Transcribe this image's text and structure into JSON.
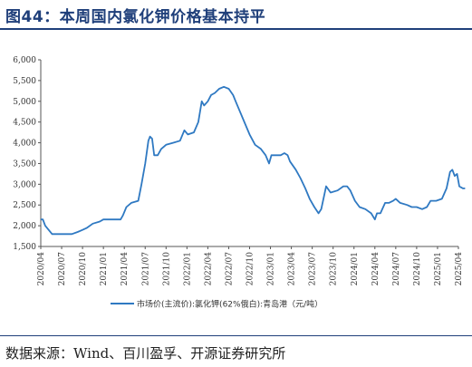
{
  "header": {
    "title": "图44：本周国内氯化钾价格基本持平"
  },
  "footer": {
    "source": "数据来源：Wind、百川盈孚、开源证券研究所"
  },
  "colors": {
    "line": "#2f79c2",
    "title": "#1f3f7a"
  },
  "chart_data": {
    "type": "line",
    "title": "",
    "xlabel": "",
    "ylabel": "",
    "ylim": [
      1500,
      6000
    ],
    "yticks": [
      1500,
      2000,
      2500,
      3000,
      3500,
      4000,
      4500,
      5000,
      5500,
      6000
    ],
    "xlim": [
      "2020-04",
      "2025-04"
    ],
    "xticks": [
      "2020/04",
      "2020/07",
      "2020/10",
      "2021/01",
      "2021/04",
      "2021/07",
      "2021/10",
      "2022/01",
      "2022/04",
      "2022/07",
      "2022/10",
      "2023/01",
      "2023/04",
      "2023/07",
      "2023/10",
      "2024/01",
      "2024/04",
      "2024/07",
      "2024/10",
      "2025/01",
      "2025/04"
    ],
    "legend_position": "bottom",
    "grid": false,
    "series": [
      {
        "name": "市场价(主流价):氯化钾(62%俄白):青岛港（元/吨）",
        "points": [
          [
            "2020-04-01",
            2150
          ],
          [
            "2020-04-10",
            2150
          ],
          [
            "2020-04-20",
            2000
          ],
          [
            "2020-05-05",
            1900
          ],
          [
            "2020-05-20",
            1800
          ],
          [
            "2020-07-01",
            1800
          ],
          [
            "2020-08-15",
            1800
          ],
          [
            "2020-09-10",
            1850
          ],
          [
            "2020-10-01",
            1900
          ],
          [
            "2020-10-20",
            1950
          ],
          [
            "2020-11-15",
            2050
          ],
          [
            "2020-12-15",
            2100
          ],
          [
            "2021-01-01",
            2150
          ],
          [
            "2021-02-01",
            2150
          ],
          [
            "2021-03-15",
            2150
          ],
          [
            "2021-03-25",
            2250
          ],
          [
            "2021-04-10",
            2450
          ],
          [
            "2021-05-01",
            2550
          ],
          [
            "2021-06-01",
            2600
          ],
          [
            "2021-06-15",
            3000
          ],
          [
            "2021-07-01",
            3500
          ],
          [
            "2021-07-15",
            4050
          ],
          [
            "2021-07-22",
            4150
          ],
          [
            "2021-08-01",
            4100
          ],
          [
            "2021-08-10",
            3700
          ],
          [
            "2021-08-25",
            3700
          ],
          [
            "2021-09-10",
            3850
          ],
          [
            "2021-10-01",
            3950
          ],
          [
            "2021-11-01",
            4000
          ],
          [
            "2021-12-01",
            4050
          ],
          [
            "2021-12-20",
            4300
          ],
          [
            "2022-01-05",
            4200
          ],
          [
            "2022-02-01",
            4250
          ],
          [
            "2022-02-20",
            4500
          ],
          [
            "2022-03-05",
            5000
          ],
          [
            "2022-03-15",
            4900
          ],
          [
            "2022-04-01",
            5000
          ],
          [
            "2022-04-15",
            5150
          ],
          [
            "2022-05-01",
            5200
          ],
          [
            "2022-05-20",
            5300
          ],
          [
            "2022-06-10",
            5350
          ],
          [
            "2022-07-01",
            5300
          ],
          [
            "2022-07-20",
            5150
          ],
          [
            "2022-08-01",
            5000
          ],
          [
            "2022-09-01",
            4600
          ],
          [
            "2022-10-01",
            4200
          ],
          [
            "2022-10-25",
            3950
          ],
          [
            "2022-11-20",
            3850
          ],
          [
            "2022-12-10",
            3700
          ],
          [
            "2022-12-25",
            3500
          ],
          [
            "2023-01-05",
            3700
          ],
          [
            "2023-02-15",
            3700
          ],
          [
            "2023-03-01",
            3750
          ],
          [
            "2023-03-15",
            3700
          ],
          [
            "2023-03-25",
            3550
          ],
          [
            "2023-04-20",
            3350
          ],
          [
            "2023-05-10",
            3150
          ],
          [
            "2023-06-01",
            2900
          ],
          [
            "2023-06-20",
            2650
          ],
          [
            "2023-07-10",
            2450
          ],
          [
            "2023-07-28",
            2300
          ],
          [
            "2023-08-10",
            2400
          ],
          [
            "2023-09-01",
            2950
          ],
          [
            "2023-09-20",
            2800
          ],
          [
            "2023-10-20",
            2850
          ],
          [
            "2023-11-15",
            2950
          ],
          [
            "2023-12-01",
            2950
          ],
          [
            "2023-12-15",
            2850
          ],
          [
            "2024-01-05",
            2600
          ],
          [
            "2024-01-25",
            2450
          ],
          [
            "2024-02-20",
            2400
          ],
          [
            "2024-03-15",
            2300
          ],
          [
            "2024-04-01",
            2150
          ],
          [
            "2024-04-10",
            2300
          ],
          [
            "2024-04-25",
            2300
          ],
          [
            "2024-05-15",
            2550
          ],
          [
            "2024-06-01",
            2550
          ],
          [
            "2024-06-20",
            2600
          ],
          [
            "2024-07-01",
            2650
          ],
          [
            "2024-07-20",
            2550
          ],
          [
            "2024-08-20",
            2500
          ],
          [
            "2024-09-10",
            2450
          ],
          [
            "2024-10-01",
            2450
          ],
          [
            "2024-10-25",
            2400
          ],
          [
            "2024-11-15",
            2450
          ],
          [
            "2024-12-01",
            2600
          ],
          [
            "2024-12-25",
            2600
          ],
          [
            "2025-01-20",
            2650
          ],
          [
            "2025-02-10",
            2900
          ],
          [
            "2025-02-25",
            3300
          ],
          [
            "2025-03-05",
            3350
          ],
          [
            "2025-03-15",
            3200
          ],
          [
            "2025-03-25",
            3250
          ],
          [
            "2025-04-05",
            2950
          ],
          [
            "2025-04-20",
            2900
          ],
          [
            "2025-04-30",
            2900
          ]
        ]
      }
    ]
  }
}
